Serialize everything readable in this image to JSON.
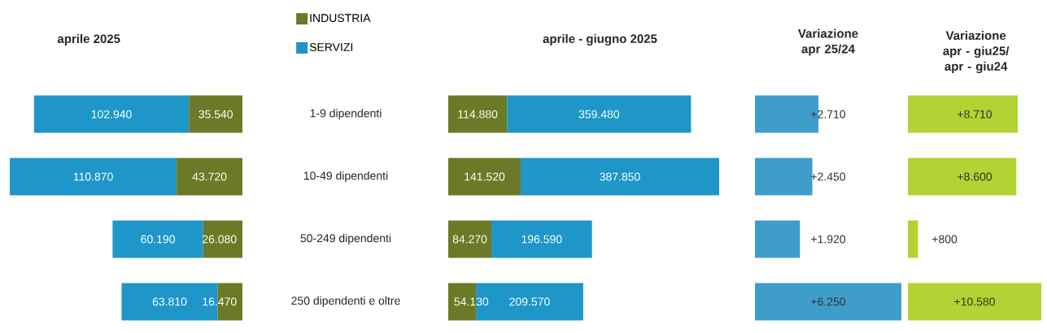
{
  "chart_data": [
    {
      "type": "bar",
      "orientation": "horizontal",
      "stacked": true,
      "title": "aprile 2025",
      "categories": [
        "1-9 dipendenti",
        "10-49 dipendenti",
        "50-249 dipendenti",
        "250 dipendenti e oltre"
      ],
      "tick_labels": "y",
      "legend": "top right",
      "series": [
        {
          "name": "INDUSTRIA",
          "color": "#6b7a26",
          "values": [
            35540,
            43720,
            26080,
            16470
          ],
          "value_labels": [
            "35.540",
            "43.720",
            "26.080",
            "16.470"
          ]
        },
        {
          "name": "SERVIZI",
          "color": "#1e96c8",
          "values": [
            102940,
            110870,
            60190,
            63810
          ],
          "value_labels": [
            "102.940",
            "110.870",
            "60.190",
            "63.810"
          ]
        }
      ]
    },
    {
      "type": "bar",
      "orientation": "horizontal",
      "stacked": true,
      "title": "aprile  - giugno 2025",
      "categories": [
        null,
        null,
        null,
        null
      ],
      "tick_labels": false,
      "series": [
        {
          "color": "#6b7a26",
          "values": [
            114880,
            141520,
            84270,
            54130
          ],
          "value_labels": [
            "114.880",
            "141.520",
            "84.270",
            "54.130"
          ]
        },
        {
          "color": "#1e96c8",
          "values": [
            359480,
            387850,
            196590,
            209570
          ],
          "value_labels": [
            "359.480",
            "387.850",
            "196.590",
            "209.570"
          ]
        }
      ]
    },
    {
      "type": "bar",
      "orientation": "horizontal",
      "title": "Variazione apr 25/24",
      "categories": [
        null,
        null,
        null,
        null
      ],
      "tick_labels": false,
      "series": [
        {
          "color": "#3f9dcc",
          "values": [
            2710,
            2450,
            1920,
            6250
          ],
          "value_labels": [
            "+2.710",
            "+2.450",
            "+1.920",
            "+6.250"
          ]
        }
      ]
    },
    {
      "type": "bar",
      "orientation": "horizontal",
      "title": "Variazione apr - giu25/ apr - giu24",
      "categories": [
        null,
        null,
        null,
        null
      ],
      "tick_labels": false,
      "series": [
        {
          "color": "#b3d233",
          "values": [
            8710,
            8600,
            800,
            10580
          ],
          "value_labels": [
            "+8.710",
            "+8.600",
            "+800",
            "+10.580"
          ]
        }
      ]
    }
  ]
}
